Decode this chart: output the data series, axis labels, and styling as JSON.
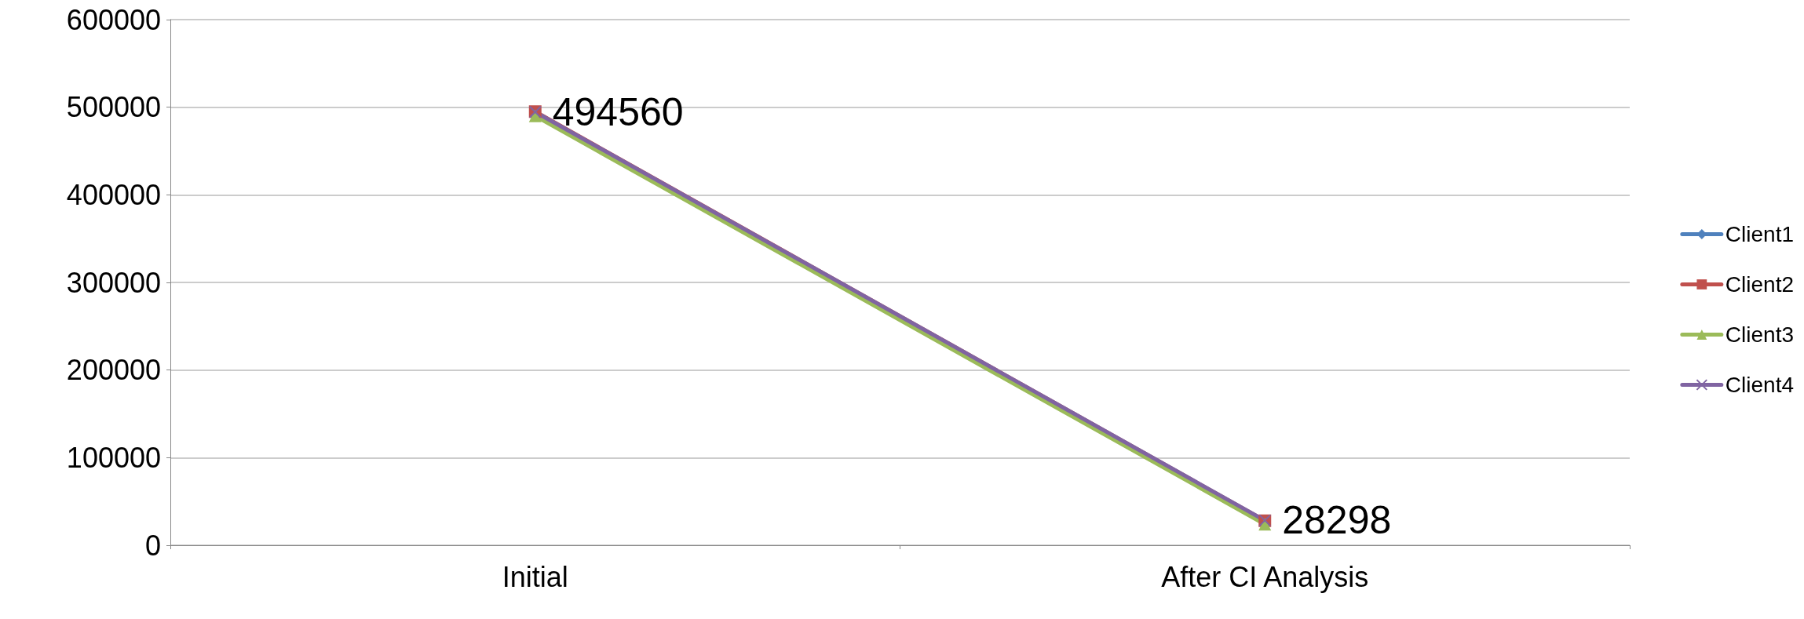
{
  "chart_data": {
    "type": "line",
    "categories": [
      "Initial",
      "After CI Analysis"
    ],
    "series": [
      {
        "name": "Client1",
        "color": "#4f81bd",
        "marker": "diamond",
        "values": [
          null,
          null
        ]
      },
      {
        "name": "Client2",
        "color": "#c0504d",
        "marker": "square",
        "values": [
          495000,
          28000
        ]
      },
      {
        "name": "Client3",
        "color": "#9bbb59",
        "marker": "triangle",
        "values": [
          490000,
          24000
        ]
      },
      {
        "name": "Client4",
        "color": "#8064a2",
        "marker": "cross",
        "values": [
          494560,
          28298
        ],
        "value_labels": [
          "494560",
          "28298"
        ]
      }
    ],
    "ylim": [
      0,
      600000
    ],
    "yticks": [
      0,
      100000,
      200000,
      300000,
      400000,
      500000,
      600000
    ],
    "grid": "y",
    "legend": "right"
  }
}
